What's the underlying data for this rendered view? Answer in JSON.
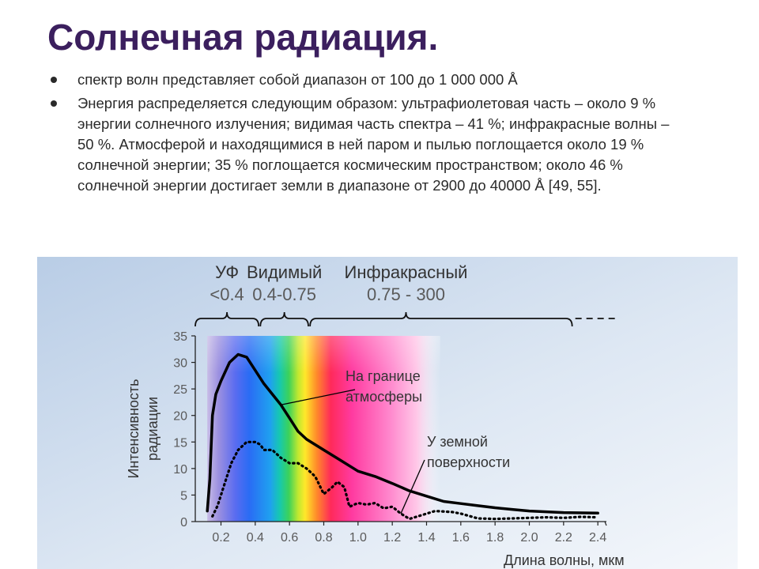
{
  "slide": {
    "title": "Солнечная радиация.",
    "bullets": [
      "спектр волн представляет собой диапазон от 100 до 1 000 000 Å",
      "Энергия распределяется следующим образом: ультрафиолетовая часть – около 9 % энергии солнечного излучения; видимая часть спектра – 41 %; инфракрасные волны – 50 %. Атмосферой и находящимися в ней паром и пылью поглощается около 19 % солнечной энергии; 35 % поглощается космическим пространством; около 46 % солнечной энергии достигает земли в диапазоне от 2900 до 40000 Å [49, 55]."
    ]
  },
  "chart_data": {
    "type": "line",
    "xlabel": "Длина волны, мкм",
    "ylabel": "Интенсивность радиации",
    "xlim": [
      0.05,
      2.45
    ],
    "ylim": [
      0,
      35
    ],
    "x_ticks": [
      "0.2",
      "0.4",
      "0.6",
      "0.8",
      "1.0",
      "1.2",
      "1.4",
      "1.6",
      "1.8",
      "2.0",
      "2.2",
      "2.4"
    ],
    "y_ticks": [
      "0",
      "5",
      "10",
      "15",
      "20",
      "25",
      "30",
      "35"
    ],
    "regions": [
      {
        "name": "УФ",
        "range": "<0.4"
      },
      {
        "name": "Видимый",
        "range": "0.4-0.75"
      },
      {
        "name": "Инфракрасный",
        "range": "0.75 - 300"
      }
    ],
    "series": [
      {
        "name": "На границе атмосферы",
        "style": "solid",
        "points": [
          [
            0.12,
            2
          ],
          [
            0.135,
            8
          ],
          [
            0.15,
            20
          ],
          [
            0.17,
            24
          ],
          [
            0.2,
            26.5
          ],
          [
            0.25,
            30
          ],
          [
            0.3,
            31.5
          ],
          [
            0.35,
            31
          ],
          [
            0.4,
            28.5
          ],
          [
            0.45,
            26
          ],
          [
            0.5,
            24
          ],
          [
            0.55,
            22
          ],
          [
            0.6,
            19.5
          ],
          [
            0.65,
            17
          ],
          [
            0.7,
            15.5
          ],
          [
            0.8,
            13.5
          ],
          [
            0.9,
            11.5
          ],
          [
            1.0,
            9.5
          ],
          [
            1.1,
            8.5
          ],
          [
            1.2,
            7.2
          ],
          [
            1.3,
            5.8
          ],
          [
            1.4,
            4.8
          ],
          [
            1.5,
            3.8
          ],
          [
            1.6,
            3.4
          ],
          [
            1.7,
            3.0
          ],
          [
            1.8,
            2.6
          ],
          [
            1.9,
            2.3
          ],
          [
            2.0,
            2.0
          ],
          [
            2.2,
            1.7
          ],
          [
            2.4,
            1.6
          ]
        ]
      },
      {
        "name": "У земной поверхности",
        "style": "dotted",
        "points": [
          [
            0.15,
            1
          ],
          [
            0.18,
            3
          ],
          [
            0.22,
            7
          ],
          [
            0.26,
            11
          ],
          [
            0.3,
            13.5
          ],
          [
            0.35,
            15
          ],
          [
            0.4,
            15
          ],
          [
            0.43,
            14.5
          ],
          [
            0.45,
            13.5
          ],
          [
            0.5,
            13.5
          ],
          [
            0.55,
            12
          ],
          [
            0.6,
            11
          ],
          [
            0.65,
            11
          ],
          [
            0.7,
            10
          ],
          [
            0.75,
            8.5
          ],
          [
            0.8,
            5.2
          ],
          [
            0.85,
            6.5
          ],
          [
            0.88,
            7.5
          ],
          [
            0.92,
            6.5
          ],
          [
            0.95,
            2.8
          ],
          [
            1.0,
            3.5
          ],
          [
            1.05,
            3.2
          ],
          [
            1.1,
            3.5
          ],
          [
            1.15,
            2.5
          ],
          [
            1.2,
            2.8
          ],
          [
            1.25,
            1.5
          ],
          [
            1.3,
            0.5
          ],
          [
            1.35,
            1.0
          ],
          [
            1.45,
            2.0
          ],
          [
            1.55,
            1.8
          ],
          [
            1.6,
            1.5
          ],
          [
            1.7,
            0.6
          ],
          [
            1.8,
            0.5
          ],
          [
            1.9,
            0.6
          ],
          [
            2.0,
            0.7
          ],
          [
            2.1,
            0.8
          ],
          [
            2.2,
            0.7
          ],
          [
            2.3,
            0.9
          ],
          [
            2.4,
            0.8
          ]
        ]
      }
    ],
    "annotations": [
      {
        "text": "На границе атмосферы",
        "lines": [
          "На границе",
          "атмосферы"
        ],
        "series": 0,
        "arrow_x": 0.55
      },
      {
        "text": "У земной поверхности",
        "lines": [
          "У земной",
          "поверхности"
        ],
        "series": 1,
        "arrow_x": 1.25
      }
    ]
  }
}
